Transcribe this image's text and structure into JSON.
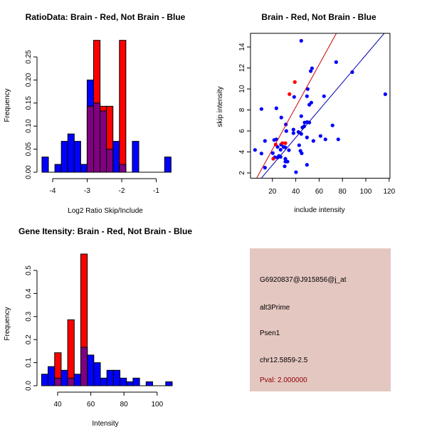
{
  "chart_data": [
    {
      "type": "bar",
      "title": "RatioData: Brain - Red, Not Brain - Blue",
      "xlabel": "Log2 Ratio Skip/Include",
      "ylabel": "Frequency",
      "bin_start": -4.31,
      "bin_width": 0.187,
      "xticks": [
        "-4",
        "-3",
        "-2",
        "-1"
      ],
      "xtick_values": [
        -4,
        -3,
        -2,
        -1
      ],
      "yticks": [
        "0.00",
        "0.05",
        "0.10",
        "0.15",
        "0.20",
        "0.25"
      ],
      "ytick_values": [
        0,
        0.05,
        0.1,
        0.15,
        0.2,
        0.25
      ],
      "series": [
        {
          "name": "Not Brain",
          "color": "#0000ff",
          "values": [
            0.033,
            0,
            0.017,
            0.067,
            0.083,
            0.067,
            0.017,
            0.2,
            0.15,
            0.133,
            0.05,
            0.067,
            0.017,
            0,
            0.067,
            0,
            0,
            0,
            0,
            0.033
          ]
        },
        {
          "name": "Brain",
          "color": "#ff0000",
          "values": [
            0,
            0,
            0,
            0,
            0,
            0,
            0,
            0.143,
            0.286,
            0.143,
            0.143,
            0,
            0.286,
            0,
            0,
            0,
            0,
            0,
            0,
            0
          ]
        }
      ],
      "overlap_color": "#800080"
    },
    {
      "type": "scatter",
      "title": "Brain - Red, Not Brain - Blue",
      "xlabel": "include intensity",
      "ylabel": "skip intensity",
      "xticks": [
        "20",
        "40",
        "60",
        "80",
        "100",
        "120"
      ],
      "xtick_values": [
        20,
        40,
        60,
        80,
        100,
        120
      ],
      "yticks": [
        "2",
        "4",
        "6",
        "8",
        "10",
        "12",
        "14"
      ],
      "ytick_values": [
        2,
        4,
        6,
        8,
        10,
        12,
        14
      ],
      "xlim": [
        1.2,
        120.7
      ],
      "ylim": [
        1.5,
        15.3
      ],
      "series": [
        {
          "name": "Not Brain",
          "color": "#0000ff",
          "points": [
            [
              44.7,
              14.59
            ],
            [
              74.6,
              12.56
            ],
            [
              88.4,
              11.6
            ],
            [
              116.7,
              9.5
            ],
            [
              53.9,
              11.97
            ],
            [
              52.8,
              11.7
            ],
            [
              50.2,
              9.99
            ],
            [
              38.6,
              9.24
            ],
            [
              49.6,
              9.31
            ],
            [
              64.2,
              9.31
            ],
            [
              53.3,
              8.7
            ],
            [
              51.6,
              8.5
            ],
            [
              10.6,
              8.09
            ],
            [
              23.4,
              8.16
            ],
            [
              27.6,
              7.28
            ],
            [
              44.7,
              7.41
            ],
            [
              31.5,
              6.62
            ],
            [
              47.6,
              6.8
            ],
            [
              49.8,
              6.85
            ],
            [
              51.6,
              6.8
            ],
            [
              45.7,
              6.33
            ],
            [
              47.2,
              6.44
            ],
            [
              71.5,
              6.53
            ],
            [
              38,
              6.13
            ],
            [
              31.9,
              5.99
            ],
            [
              42.3,
              5.9
            ],
            [
              38,
              5.79
            ],
            [
              44.7,
              5.72
            ],
            [
              13.6,
              5.05
            ],
            [
              21.5,
              5.14
            ],
            [
              23.4,
              5.2
            ],
            [
              49.6,
              5.38
            ],
            [
              61.2,
              5.52
            ],
            [
              65.4,
              5.2
            ],
            [
              76.4,
              5.2
            ],
            [
              55.1,
              5.05
            ],
            [
              5.1,
              4.19
            ],
            [
              10.6,
              3.85
            ],
            [
              20.3,
              3.89
            ],
            [
              24.4,
              4.48
            ],
            [
              27.4,
              4.7
            ],
            [
              29.5,
              4.48
            ],
            [
              30.9,
              4.44
            ],
            [
              27,
              4.21
            ],
            [
              34.1,
              4.17
            ],
            [
              42.9,
              4.64
            ],
            [
              44,
              4.1
            ],
            [
              45.1,
              3.87
            ],
            [
              22,
              3.49
            ],
            [
              24.4,
              3.47
            ],
            [
              25.6,
              3.62
            ],
            [
              27,
              3.53
            ],
            [
              31.1,
              3.35
            ],
            [
              31.1,
              3.08
            ],
            [
              32.9,
              3.08
            ],
            [
              13.6,
              2.5
            ],
            [
              30.5,
              2.63
            ],
            [
              49.6,
              2.77
            ],
            [
              40.2,
              2.07
            ]
          ],
          "fit": {
            "intercept": 0.13,
            "slope": 0.131
          }
        },
        {
          "name": "Brain",
          "color": "#ff0000",
          "points": [
            [
              39.2,
              10.66
            ],
            [
              34.6,
              9.51
            ],
            [
              22.8,
              4.71
            ],
            [
              28.5,
              4.84
            ],
            [
              31.1,
              4.84
            ],
            [
              20.7,
              3.35
            ]
          ],
          "fit": {
            "intercept": 0.197,
            "slope": 0.202
          }
        }
      ]
    },
    {
      "type": "bar",
      "title": "Gene Itensity: Brain - Red, Not Brain - Blue",
      "xlabel": "Intensity",
      "ylabel": "Frequency",
      "bin_start": 30.3,
      "bin_width": 3.94,
      "xticks": [
        "40",
        "60",
        "80",
        "100"
      ],
      "xtick_values": [
        40,
        60,
        80,
        100
      ],
      "yticks": [
        "0.0",
        "0.1",
        "0.2",
        "0.3",
        "0.4",
        "0.5"
      ],
      "ytick_values": [
        0,
        0.1,
        0.2,
        0.3,
        0.4,
        0.5
      ],
      "series": [
        {
          "name": "Not Brain",
          "color": "#0000ff",
          "values": [
            0.05,
            0.083,
            0.033,
            0.067,
            0.033,
            0.05,
            0.167,
            0.133,
            0.1,
            0.033,
            0.067,
            0.067,
            0.033,
            0.017,
            0.033,
            0,
            0.017,
            0,
            0,
            0.017
          ]
        },
        {
          "name": "Brain",
          "color": "#ff0000",
          "values": [
            0,
            0,
            0.143,
            0,
            0.286,
            0,
            0.571,
            0,
            0,
            0,
            0,
            0,
            0,
            0,
            0,
            0,
            0,
            0,
            0,
            0
          ]
        }
      ],
      "overlap_color": "#800080"
    }
  ],
  "info_panel": {
    "background": "#e5c7c1",
    "probe_id": "G6920837@J915856@j_at",
    "event_type": "alt3Prime",
    "gene": "Psen1",
    "location": "chr12.5859-2.5",
    "pval": "Pval: 2.000000",
    "pval_color": "#8b0000"
  }
}
